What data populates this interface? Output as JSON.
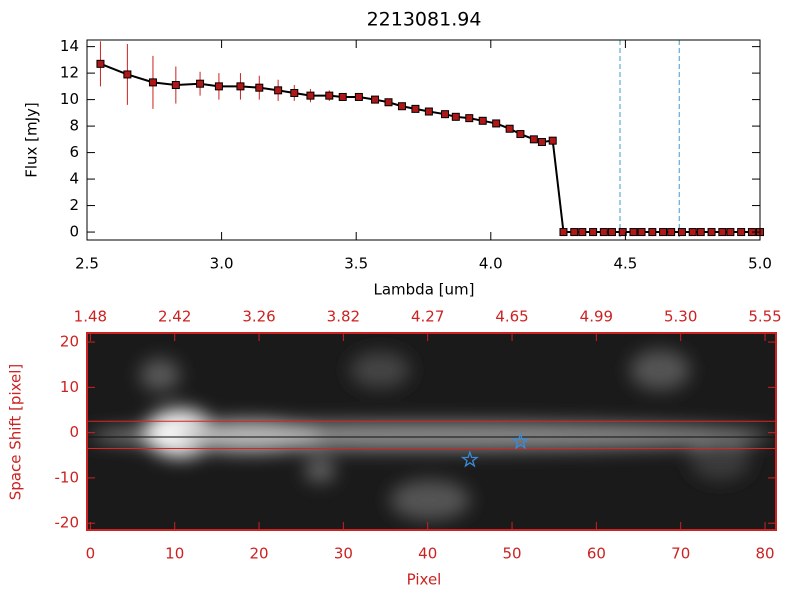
{
  "chart_data": [
    {
      "type": "line",
      "title": "2213081.94",
      "xlabel": "Lambda [um]",
      "ylabel": "Flux [mJy]",
      "x": [
        2.55,
        2.65,
        2.745,
        2.83,
        2.92,
        2.99,
        3.07,
        3.14,
        3.21,
        3.27,
        3.33,
        3.4,
        3.45,
        3.51,
        3.57,
        3.62,
        3.67,
        3.72,
        3.77,
        3.83,
        3.87,
        3.92,
        3.97,
        4.02,
        4.07,
        4.11,
        4.16,
        4.19,
        4.23,
        4.27,
        4.31,
        4.34,
        4.38,
        4.42,
        4.45,
        4.49,
        4.53,
        4.56,
        4.6,
        4.64,
        4.67,
        4.71,
        4.75,
        4.78,
        4.82,
        4.86,
        4.89,
        4.93,
        4.97,
        5.0
      ],
      "series": [
        {
          "color": "#000000",
          "marker_color": "#b01818",
          "error_color": "#cc2222",
          "values": [
            12.7,
            11.9,
            11.3,
            11.1,
            11.2,
            11.0,
            11.0,
            10.9,
            10.7,
            10.5,
            10.3,
            10.3,
            10.2,
            10.2,
            10.0,
            9.8,
            9.5,
            9.3,
            9.1,
            8.9,
            8.7,
            8.6,
            8.4,
            8.2,
            7.8,
            7.4,
            7.0,
            6.8,
            6.9,
            0,
            0,
            0,
            0,
            0,
            0,
            0,
            0,
            0,
            0,
            0,
            0,
            0,
            0,
            0,
            0,
            0,
            0,
            0,
            0,
            0
          ],
          "errors": [
            1.7,
            2.3,
            2.0,
            1.4,
            0.9,
            1.0,
            1.0,
            0.9,
            0.8,
            0.6,
            0.5,
            0.4,
            0.3,
            0.2,
            0.2,
            0.2,
            0.2,
            0.2,
            0.2,
            0.2,
            0.2,
            0.2,
            0.2,
            0.2,
            0.2,
            0.2,
            0.2,
            0.2,
            0.2,
            0,
            0,
            0,
            0,
            0,
            0,
            0,
            0,
            0,
            0,
            0,
            0,
            0,
            0,
            0,
            0,
            0,
            0,
            0,
            0,
            0
          ]
        }
      ],
      "vlines": [
        4.48,
        4.7
      ],
      "vline_color": "#3aa0c8",
      "xlim": [
        2.5,
        5.0
      ],
      "ylim": [
        -0.6,
        14.5
      ],
      "xticks": [
        2.5,
        {
          "value": 3,
          "label": "3.0"
        },
        3.5,
        {
          "value": 4,
          "label": "4.0"
        },
        4.5,
        {
          "value": 5,
          "label": "5.0"
        }
      ],
      "yticks": [
        0,
        2,
        4,
        6,
        8,
        10,
        12,
        14
      ]
    },
    {
      "type": "image",
      "xlabel": "Pixel",
      "ylabel": "Space Shift [pixel]",
      "axis_color": "#cc2222",
      "xlim": [
        -0.4,
        81.3
      ],
      "ylim": [
        -21.5,
        22
      ],
      "xticks": [
        0,
        10,
        20,
        30,
        40,
        50,
        60,
        70,
        80
      ],
      "x2ticks": [
        {
          "value": 0,
          "label": "1.48"
        },
        {
          "value": 10,
          "label": "2.42"
        },
        {
          "value": 20,
          "label": "3.26"
        },
        {
          "value": 30,
          "label": "3.82"
        },
        {
          "value": 40,
          "label": "4.27"
        },
        {
          "value": 50,
          "label": "4.65"
        },
        {
          "value": 60,
          "label": "4.99"
        },
        {
          "value": 70,
          "label": "5.30"
        },
        {
          "value": 80,
          "label": "5.55"
        }
      ],
      "yticks": [
        -20,
        -10,
        0,
        10,
        20
      ],
      "hlines": [
        2.5,
        -3.5
      ],
      "hline_color": "#dd2222",
      "markers": {
        "x": [
          45,
          51
        ],
        "y": [
          -6,
          -2
        ],
        "color": "#3a8ad8"
      }
    }
  ]
}
